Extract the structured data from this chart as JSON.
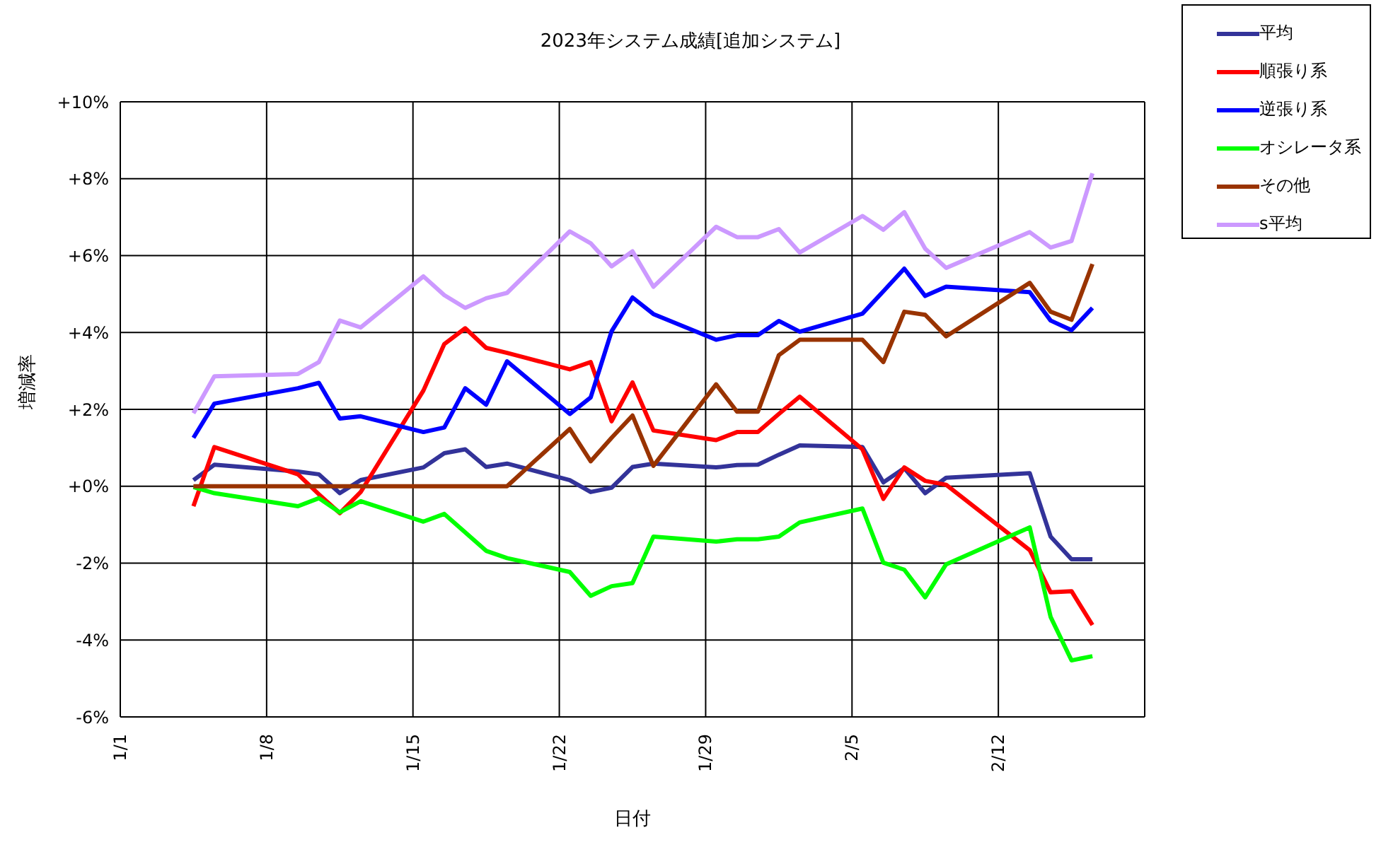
{
  "chart_data": {
    "type": "line",
    "title": "2023年システム成績[追加システム]",
    "xlabel": "日付",
    "ylabel": "増減率",
    "x": [
      "2023-01-04T12:00",
      "2023-01-05T12:00",
      "2023-01-09T12:00",
      "2023-01-10T12:00",
      "2023-01-11T12:00",
      "2023-01-12T12:00",
      "2023-01-15T12:00",
      "2023-01-16T12:00",
      "2023-01-17T12:00",
      "2023-01-18T12:00",
      "2023-01-19T12:00",
      "2023-01-22T12:00",
      "2023-01-23T12:00",
      "2023-01-24T12:00",
      "2023-01-25T12:00",
      "2023-01-26T12:00",
      "2023-01-29T12:00",
      "2023-01-30T12:00",
      "2023-01-31T12:00",
      "2023-02-01T12:00",
      "2023-02-02T12:00",
      "2023-02-05T12:00",
      "2023-02-06T12:00",
      "2023-02-07T12:00",
      "2023-02-08T12:00",
      "2023-02-09T12:00",
      "2023-02-13T12:00",
      "2023-02-14T12:00",
      "2023-02-15T12:00",
      "2023-02-16T12:00"
    ],
    "series": [
      {
        "name": "平均",
        "color": "#333399",
        "values": [
          0.16,
          0.56,
          0.38,
          0.31,
          -0.18,
          0.16,
          0.49,
          0.86,
          0.96,
          0.5,
          0.59,
          0.16,
          -0.15,
          -0.04,
          0.5,
          0.59,
          0.49,
          0.55,
          0.56,
          0.82,
          1.06,
          1.02,
          0.1,
          0.47,
          -0.18,
          0.22,
          0.34,
          -1.31,
          -1.9,
          -1.9
        ]
      },
      {
        "name": "順張り系",
        "color": "#ff0000",
        "values": [
          -0.52,
          1.02,
          0.31,
          -0.21,
          -0.7,
          -0.15,
          2.49,
          3.7,
          4.11,
          3.6,
          3.47,
          3.04,
          3.23,
          1.69,
          2.7,
          1.45,
          1.2,
          1.41,
          1.41,
          1.88,
          2.33,
          0.96,
          -0.33,
          0.49,
          0.14,
          0.04,
          -1.66,
          -2.76,
          -2.73,
          -3.61
        ]
      },
      {
        "name": "逆張り系",
        "color": "#0000ff",
        "values": [
          1.26,
          2.15,
          2.55,
          2.69,
          1.76,
          1.82,
          1.41,
          1.53,
          2.55,
          2.12,
          3.25,
          1.88,
          2.31,
          4.03,
          4.91,
          4.48,
          3.81,
          3.93,
          3.93,
          4.3,
          4.02,
          4.49,
          5.07,
          5.66,
          4.95,
          5.19,
          5.05,
          4.31,
          4.06,
          4.64
        ]
      },
      {
        "name": "オシレータ系",
        "color": "#00ff00",
        "values": [
          -0.02,
          -0.18,
          -0.52,
          -0.31,
          -0.68,
          -0.39,
          -0.92,
          -0.72,
          -1.2,
          -1.68,
          -1.87,
          -2.23,
          -2.85,
          -2.6,
          -2.52,
          -1.31,
          -1.44,
          -1.38,
          -1.38,
          -1.31,
          -0.94,
          -0.58,
          -1.99,
          -2.17,
          -2.89,
          -2.03,
          -1.07,
          -3.4,
          -4.53,
          -4.42
        ]
      },
      {
        "name": "その他",
        "color": "#993300",
        "values": [
          0,
          0,
          0,
          0,
          0,
          0,
          0,
          0,
          0,
          0,
          0,
          1.49,
          0.65,
          1.26,
          1.84,
          0.53,
          2.65,
          1.94,
          1.94,
          3.41,
          3.81,
          3.81,
          3.23,
          4.54,
          4.46,
          3.9,
          5.29,
          4.54,
          4.33,
          5.78
        ]
      },
      {
        "name": "s平均",
        "color": "#cc99ff",
        "values": [
          1.9,
          2.86,
          2.92,
          3.23,
          4.31,
          4.13,
          5.46,
          4.97,
          4.64,
          4.89,
          5.03,
          6.63,
          6.32,
          5.72,
          6.11,
          5.19,
          6.75,
          6.48,
          6.48,
          6.69,
          6.08,
          7.03,
          6.67,
          7.13,
          6.18,
          5.68,
          6.61,
          6.21,
          6.38,
          8.14
        ]
      }
    ],
    "xlim": [
      "2023-01-01",
      "2023-02-19"
    ],
    "xticks": [
      {
        "value": "2023-01-01",
        "label": "1/1"
      },
      {
        "value": "2023-01-08",
        "label": "1/8"
      },
      {
        "value": "2023-01-15",
        "label": "1/15"
      },
      {
        "value": "2023-01-22",
        "label": "1/22"
      },
      {
        "value": "2023-01-29",
        "label": "1/29"
      },
      {
        "value": "2023-02-05",
        "label": "2/5"
      },
      {
        "value": "2023-02-12",
        "label": "2/12"
      }
    ],
    "ylim": [
      -6,
      10
    ],
    "yticks": [
      {
        "value": -6,
        "label": "-6%"
      },
      {
        "value": -4,
        "label": "-4%"
      },
      {
        "value": -2,
        "label": "-2%"
      },
      {
        "value": 0,
        "label": "+0%"
      },
      {
        "value": 2,
        "label": "+2%"
      },
      {
        "value": 4,
        "label": "+4%"
      },
      {
        "value": 6,
        "label": "+6%"
      },
      {
        "value": 8,
        "label": "+8%"
      },
      {
        "value": 10,
        "label": "+10%"
      }
    ],
    "grid": true,
    "legend": "top right",
    "marker": "none",
    "line_style": "solid"
  }
}
